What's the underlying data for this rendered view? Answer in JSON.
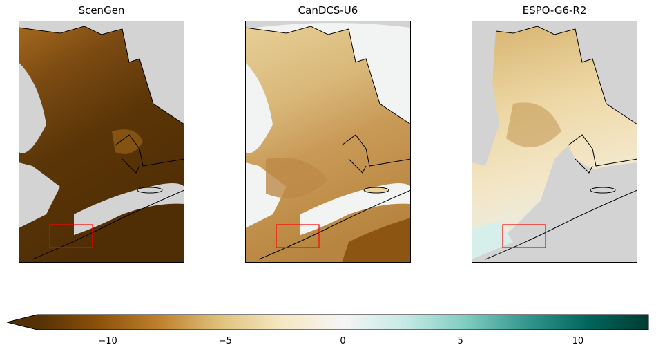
{
  "panels": [
    {
      "title": "ScenGen",
      "palette": "dark"
    },
    {
      "title": "CanDCS-U6",
      "palette": "mid"
    },
    {
      "title": "ESPO-G6-R2",
      "palette": "light"
    }
  ],
  "colorbar": {
    "min": -13,
    "max": 13,
    "extend": "min",
    "ticks": [
      "−10",
      "−5",
      "0",
      "5",
      "10"
    ],
    "tick_values": [
      -10,
      -5,
      0,
      5,
      10
    ],
    "colormap": "BrBG",
    "colors": [
      "#543005",
      "#8c510a",
      "#bf812d",
      "#dfc27d",
      "#f6e8c3",
      "#f5f5f5",
      "#c7eae5",
      "#80cdc1",
      "#35978f",
      "#01665e",
      "#003c30"
    ]
  },
  "map": {
    "ocean_color": "#d3d3d3",
    "highlight_box_color": "#ff0000",
    "outline_color": "#000000"
  }
}
